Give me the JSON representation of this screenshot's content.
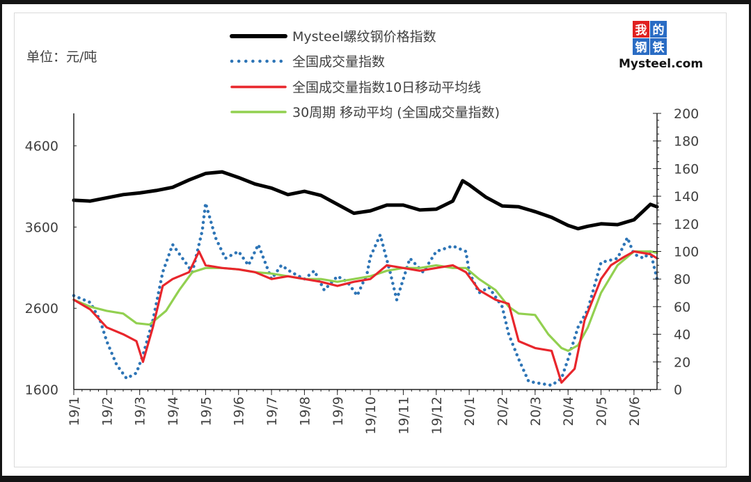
{
  "unit_label": "单位：元/吨",
  "logo": {
    "chars": [
      "我",
      "的",
      "钢",
      "铁"
    ],
    "wordmark": "Mysteel.com",
    "colors": [
      "#e02020",
      "#2a6cc4",
      "#2a6cc4",
      "#2a6cc4"
    ]
  },
  "chart_data": {
    "type": "line",
    "title": "",
    "xlabel": "",
    "ylabel": "单位：元/吨",
    "x_ticks": [
      "19/1",
      "19/2",
      "19/3",
      "19/4",
      "19/5",
      "19/6",
      "19/7",
      "19/8",
      "19/9",
      "19/10",
      "19/11",
      "19/12",
      "20/1",
      "20/2",
      "20/3",
      "20/4",
      "20/5",
      "20/6"
    ],
    "x_range": [
      0,
      17.7
    ],
    "y_left": {
      "range": [
        1600,
        5000
      ],
      "ticks": [
        1600,
        2600,
        3600,
        4600
      ],
      "tick_labels": [
        "1600",
        "2600",
        "3600",
        "4600"
      ]
    },
    "y_right": {
      "range": [
        0,
        200
      ],
      "ticks": [
        0,
        20,
        40,
        60,
        80,
        100,
        120,
        140,
        160,
        180,
        200
      ],
      "tick_labels": [
        "0",
        "20",
        "40",
        "60",
        "80",
        "100",
        "120",
        "140",
        "160",
        "180",
        "200"
      ]
    },
    "grid": false,
    "legend": "top-center",
    "series": [
      {
        "name": "Mysteel螺纹钢价格指数",
        "axis": "left",
        "style": "solid",
        "color": "#000000",
        "points": [
          [
            0,
            3930
          ],
          [
            0.5,
            3920
          ],
          [
            1,
            3960
          ],
          [
            1.5,
            4000
          ],
          [
            2,
            4020
          ],
          [
            2.5,
            4050
          ],
          [
            3,
            4090
          ],
          [
            3.5,
            4180
          ],
          [
            4,
            4260
          ],
          [
            4.5,
            4280
          ],
          [
            5,
            4210
          ],
          [
            5.5,
            4130
          ],
          [
            6,
            4080
          ],
          [
            6.5,
            4000
          ],
          [
            7,
            4040
          ],
          [
            7.5,
            3990
          ],
          [
            8,
            3880
          ],
          [
            8.5,
            3770
          ],
          [
            9,
            3800
          ],
          [
            9.5,
            3870
          ],
          [
            10,
            3870
          ],
          [
            10.5,
            3810
          ],
          [
            11,
            3820
          ],
          [
            11.5,
            3920
          ],
          [
            11.8,
            4170
          ],
          [
            12,
            4120
          ],
          [
            12.5,
            3970
          ],
          [
            13,
            3860
          ],
          [
            13.5,
            3850
          ],
          [
            14,
            3790
          ],
          [
            14.5,
            3720
          ],
          [
            15,
            3620
          ],
          [
            15.3,
            3580
          ],
          [
            15.6,
            3610
          ],
          [
            16,
            3640
          ],
          [
            16.5,
            3630
          ],
          [
            17,
            3690
          ],
          [
            17.5,
            3880
          ],
          [
            17.7,
            3850
          ]
        ]
      },
      {
        "name": "全国成交量指数",
        "axis": "right",
        "style": "dotted",
        "color": "#2e75b6",
        "points": [
          [
            0,
            68
          ],
          [
            0.5,
            63
          ],
          [
            0.8,
            50
          ],
          [
            1,
            35
          ],
          [
            1.3,
            18
          ],
          [
            1.6,
            8
          ],
          [
            1.9,
            12
          ],
          [
            2.1,
            25
          ],
          [
            2.4,
            50
          ],
          [
            2.7,
            85
          ],
          [
            3,
            105
          ],
          [
            3.3,
            95
          ],
          [
            3.6,
            85
          ],
          [
            3.9,
            115
          ],
          [
            4,
            135
          ],
          [
            4.3,
            110
          ],
          [
            4.6,
            95
          ],
          [
            5,
            100
          ],
          [
            5.3,
            90
          ],
          [
            5.6,
            105
          ],
          [
            6,
            80
          ],
          [
            6.3,
            90
          ],
          [
            6.6,
            85
          ],
          [
            7,
            80
          ],
          [
            7.3,
            86
          ],
          [
            7.6,
            72
          ],
          [
            8,
            82
          ],
          [
            8.3,
            78
          ],
          [
            8.6,
            68
          ],
          [
            8.9,
            84
          ],
          [
            9,
            96
          ],
          [
            9.3,
            112
          ],
          [
            9.6,
            85
          ],
          [
            9.8,
            65
          ],
          [
            10.2,
            95
          ],
          [
            10.6,
            85
          ],
          [
            11,
            100
          ],
          [
            11.5,
            104
          ],
          [
            11.9,
            100
          ],
          [
            12,
            85
          ],
          [
            12.3,
            70
          ],
          [
            12.6,
            74
          ],
          [
            13,
            60
          ],
          [
            13.2,
            40
          ],
          [
            13.5,
            22
          ],
          [
            13.8,
            6
          ],
          [
            14,
            5
          ],
          [
            14.5,
            3
          ],
          [
            14.8,
            8
          ],
          [
            15,
            22
          ],
          [
            15.3,
            45
          ],
          [
            15.6,
            58
          ],
          [
            16,
            92
          ],
          [
            16.5,
            95
          ],
          [
            16.8,
            110
          ],
          [
            17,
            98
          ],
          [
            17.3,
            95
          ],
          [
            17.5,
            100
          ],
          [
            17.7,
            80
          ]
        ]
      },
      {
        "name": "全国成交量指数10日移动平均线",
        "axis": "right",
        "style": "solid",
        "color": "#e8262c",
        "points": [
          [
            0,
            65
          ],
          [
            0.5,
            58
          ],
          [
            1,
            45
          ],
          [
            1.5,
            40
          ],
          [
            1.9,
            35
          ],
          [
            2.1,
            20
          ],
          [
            2.4,
            45
          ],
          [
            2.7,
            75
          ],
          [
            3,
            80
          ],
          [
            3.5,
            85
          ],
          [
            3.8,
            100
          ],
          [
            4,
            90
          ],
          [
            4.5,
            88
          ],
          [
            5,
            87
          ],
          [
            5.5,
            85
          ],
          [
            6,
            80
          ],
          [
            6.5,
            82
          ],
          [
            7,
            80
          ],
          [
            7.5,
            78
          ],
          [
            8,
            75
          ],
          [
            8.5,
            78
          ],
          [
            9,
            80
          ],
          [
            9.5,
            90
          ],
          [
            10,
            88
          ],
          [
            10.5,
            86
          ],
          [
            11,
            88
          ],
          [
            11.5,
            90
          ],
          [
            11.9,
            85
          ],
          [
            12.3,
            72
          ],
          [
            12.8,
            65
          ],
          [
            13.2,
            62
          ],
          [
            13.5,
            35
          ],
          [
            14,
            30
          ],
          [
            14.5,
            28
          ],
          [
            14.8,
            5
          ],
          [
            15.2,
            15
          ],
          [
            15.5,
            50
          ],
          [
            16,
            80
          ],
          [
            16.3,
            90
          ],
          [
            16.7,
            96
          ],
          [
            17,
            100
          ],
          [
            17.5,
            98
          ],
          [
            17.7,
            95
          ]
        ]
      },
      {
        "name": "30周期 移动平均 (全国成交量指数)",
        "axis": "right",
        "style": "solid",
        "color": "#92d050",
        "points": [
          [
            0,
            65
          ],
          [
            0.5,
            60
          ],
          [
            1,
            57
          ],
          [
            1.5,
            55
          ],
          [
            1.9,
            48
          ],
          [
            2.3,
            47
          ],
          [
            2.8,
            57
          ],
          [
            3.2,
            72
          ],
          [
            3.6,
            85
          ],
          [
            4,
            88
          ],
          [
            4.5,
            88
          ],
          [
            5,
            87
          ],
          [
            5.5,
            85
          ],
          [
            6,
            84
          ],
          [
            6.5,
            82
          ],
          [
            7,
            80
          ],
          [
            7.5,
            80
          ],
          [
            8,
            78
          ],
          [
            8.5,
            80
          ],
          [
            9,
            82
          ],
          [
            9.5,
            86
          ],
          [
            10,
            88
          ],
          [
            10.5,
            88
          ],
          [
            11,
            90
          ],
          [
            11.5,
            88
          ],
          [
            11.9,
            88
          ],
          [
            12.3,
            80
          ],
          [
            12.8,
            72
          ],
          [
            13.2,
            60
          ],
          [
            13.5,
            55
          ],
          [
            14,
            54
          ],
          [
            14.4,
            40
          ],
          [
            14.8,
            30
          ],
          [
            15,
            28
          ],
          [
            15.3,
            32
          ],
          [
            15.6,
            45
          ],
          [
            16,
            70
          ],
          [
            16.5,
            90
          ],
          [
            17,
            100
          ],
          [
            17.5,
            100
          ],
          [
            17.7,
            99
          ]
        ]
      }
    ]
  }
}
